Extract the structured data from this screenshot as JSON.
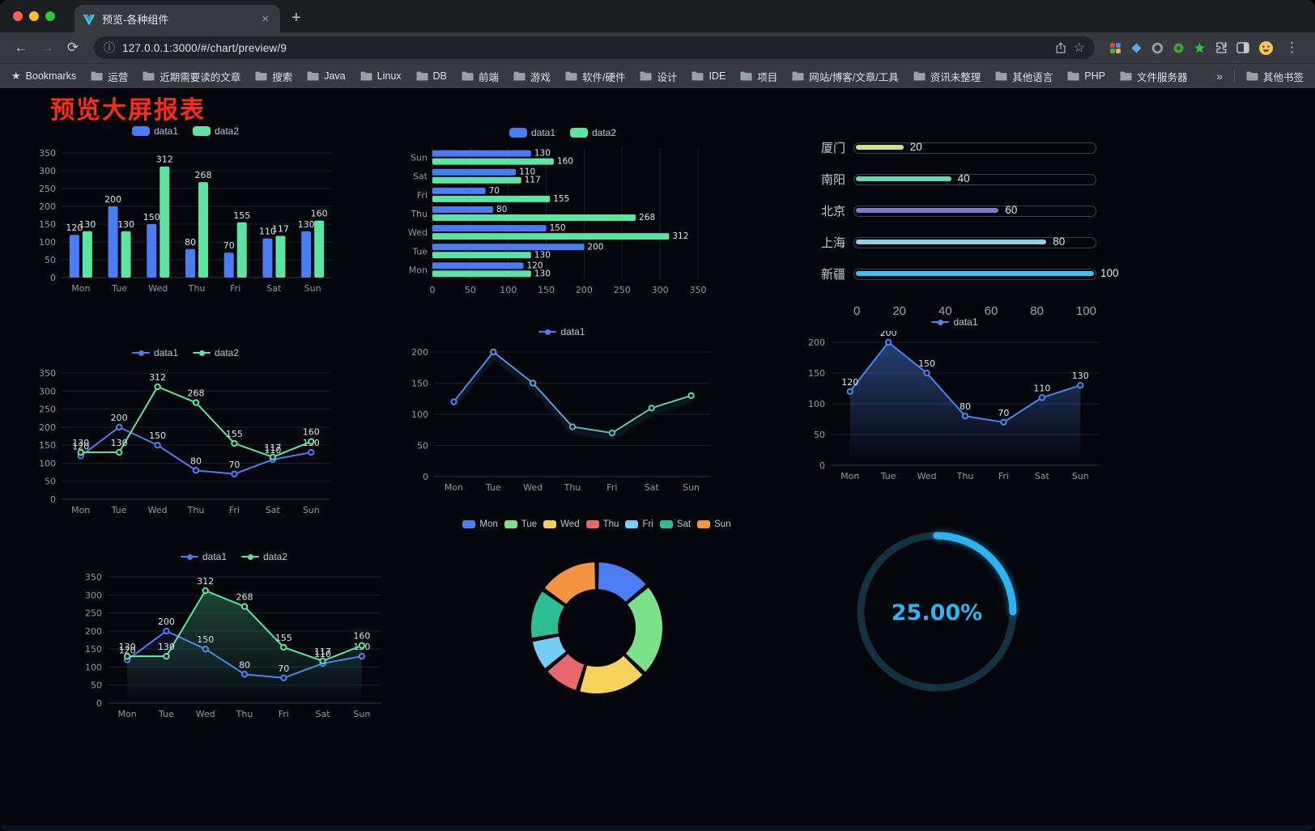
{
  "browser": {
    "tab": {
      "title": "预览-各种组件"
    },
    "url": "127.0.0.1:3000/#/chart/preview/9",
    "bookmarks_label": "Bookmarks",
    "bookmarks": [
      "运营",
      "近期需要读的文章",
      "搜索",
      "Java",
      "Linux",
      "DB",
      "前端",
      "游戏",
      "软件/硬件",
      "设计",
      "IDE",
      "项目",
      "网站/博客/文章/工具",
      "资讯未整理",
      "其他语言",
      "PHP",
      "文件服务器"
    ],
    "overflow": "»",
    "other_bookmarks": "其他书签",
    "icons": {
      "back": "←",
      "forward": "→",
      "reload": "⟳",
      "info": "ⓘ",
      "star": "☆",
      "menu": "⋮",
      "plus": "+",
      "close": "×",
      "bookmark_star": "★"
    }
  },
  "page": {
    "title": "预览大屏报表",
    "title_color": "#fe2c17",
    "background": "#04060b"
  },
  "chart_data": [
    {
      "type": "bar",
      "categories": [
        "Mon",
        "Tue",
        "Wed",
        "Thu",
        "Fri",
        "Sat",
        "Sun"
      ],
      "series": [
        {
          "name": "data1",
          "color": "#4b7cf3",
          "values": [
            120,
            200,
            150,
            80,
            70,
            110,
            130
          ]
        },
        {
          "name": "data2",
          "color": "#5de3a2",
          "values": [
            130,
            130,
            312,
            268,
            155,
            117,
            160
          ]
        }
      ],
      "ylim": [
        0,
        350
      ],
      "ytick": 50,
      "legend_position": "top",
      "grid": true
    },
    {
      "type": "hbar",
      "categories": [
        "Mon",
        "Tue",
        "Wed",
        "Thu",
        "Fri",
        "Sat",
        "Sun"
      ],
      "series": [
        {
          "name": "data1",
          "color": "#4b7cf3",
          "values": [
            120,
            200,
            150,
            80,
            70,
            110,
            130
          ]
        },
        {
          "name": "data2",
          "color": "#5de3a2",
          "values": [
            130,
            130,
            312,
            268,
            155,
            117,
            160
          ]
        }
      ],
      "xlim": [
        0,
        350
      ],
      "xtick": 50,
      "legend_position": "top",
      "grid": true
    },
    {
      "type": "capsule",
      "max": 100,
      "axis": [
        0,
        20,
        40,
        60,
        80,
        100
      ],
      "items": [
        {
          "name": "厦门",
          "value": 20,
          "color": "#cfe087"
        },
        {
          "name": "南阳",
          "value": 40,
          "color": "#67d7b0"
        },
        {
          "name": "北京",
          "value": 60,
          "color": "#7d78d2"
        },
        {
          "name": "上海",
          "value": 80,
          "color": "#8fcfe8"
        },
        {
          "name": "新疆",
          "value": 100,
          "color": "#3cc4f0"
        }
      ]
    },
    {
      "type": "line",
      "categories": [
        "Mon",
        "Tue",
        "Wed",
        "Thu",
        "Fri",
        "Sat",
        "Sun"
      ],
      "series": [
        {
          "name": "data1",
          "color": "#4b7cf3",
          "values": [
            120,
            200,
            150,
            80,
            70,
            110,
            130
          ],
          "labels": true
        },
        {
          "name": "data2",
          "color": "#5de3a2",
          "values": [
            130,
            130,
            312,
            268,
            155,
            117,
            160
          ],
          "labels": true
        }
      ],
      "ylim": [
        0,
        350
      ],
      "ytick": 50,
      "legend_position": "top",
      "grid": true
    },
    {
      "type": "line",
      "categories": [
        "Mon",
        "Tue",
        "Wed",
        "Thu",
        "Fri",
        "Sat",
        "Sun"
      ],
      "series": [
        {
          "name": "data1",
          "gradient": [
            "#4b7cf3",
            "#5de3a2"
          ],
          "values": [
            120,
            200,
            150,
            80,
            70,
            110,
            130
          ],
          "labels": false,
          "shadow": true
        }
      ],
      "ylim": [
        0,
        200
      ],
      "ytick": 50,
      "legend_position": "top",
      "grid": true
    },
    {
      "type": "line",
      "categories": [
        "Mon",
        "Tue",
        "Wed",
        "Thu",
        "Fri",
        "Sat",
        "Sun"
      ],
      "series": [
        {
          "name": "data1",
          "color": "#4b86f0",
          "values": [
            120,
            200,
            150,
            80,
            70,
            110,
            130
          ],
          "labels": true,
          "area": 0.45
        }
      ],
      "ylim": [
        0,
        200
      ],
      "ytick": 50,
      "legend_position": "top",
      "grid": true
    },
    {
      "type": "line",
      "categories": [
        "Mon",
        "Tue",
        "Wed",
        "Thu",
        "Fri",
        "Sat",
        "Sun"
      ],
      "series": [
        {
          "name": "data1",
          "color": "#4b7cf3",
          "values": [
            120,
            200,
            150,
            80,
            70,
            110,
            130
          ],
          "labels": true,
          "area": 0.18
        },
        {
          "name": "data2",
          "color": "#5de3a2",
          "values": [
            130,
            130,
            312,
            268,
            155,
            117,
            160
          ],
          "labels": true,
          "area": 0.32
        }
      ],
      "ylim": [
        0,
        350
      ],
      "ytick": 50,
      "legend_position": "top",
      "grid": true
    },
    {
      "type": "pie",
      "labels": [
        "Mon",
        "Tue",
        "Wed",
        "Thu",
        "Fri",
        "Sat",
        "Sun"
      ],
      "values": [
        120,
        200,
        150,
        80,
        70,
        110,
        130
      ],
      "colors": [
        "#4d7df2",
        "#7de18a",
        "#f6d15c",
        "#e8686f",
        "#76cdf4",
        "#2ebd92",
        "#f59342"
      ],
      "legend_position": "top",
      "inner_radius": 47,
      "outer_radius": 82
    },
    {
      "type": "gauge",
      "value": 25,
      "display": "25.00%",
      "color": "#2db3f0",
      "track": "#12323f"
    }
  ]
}
